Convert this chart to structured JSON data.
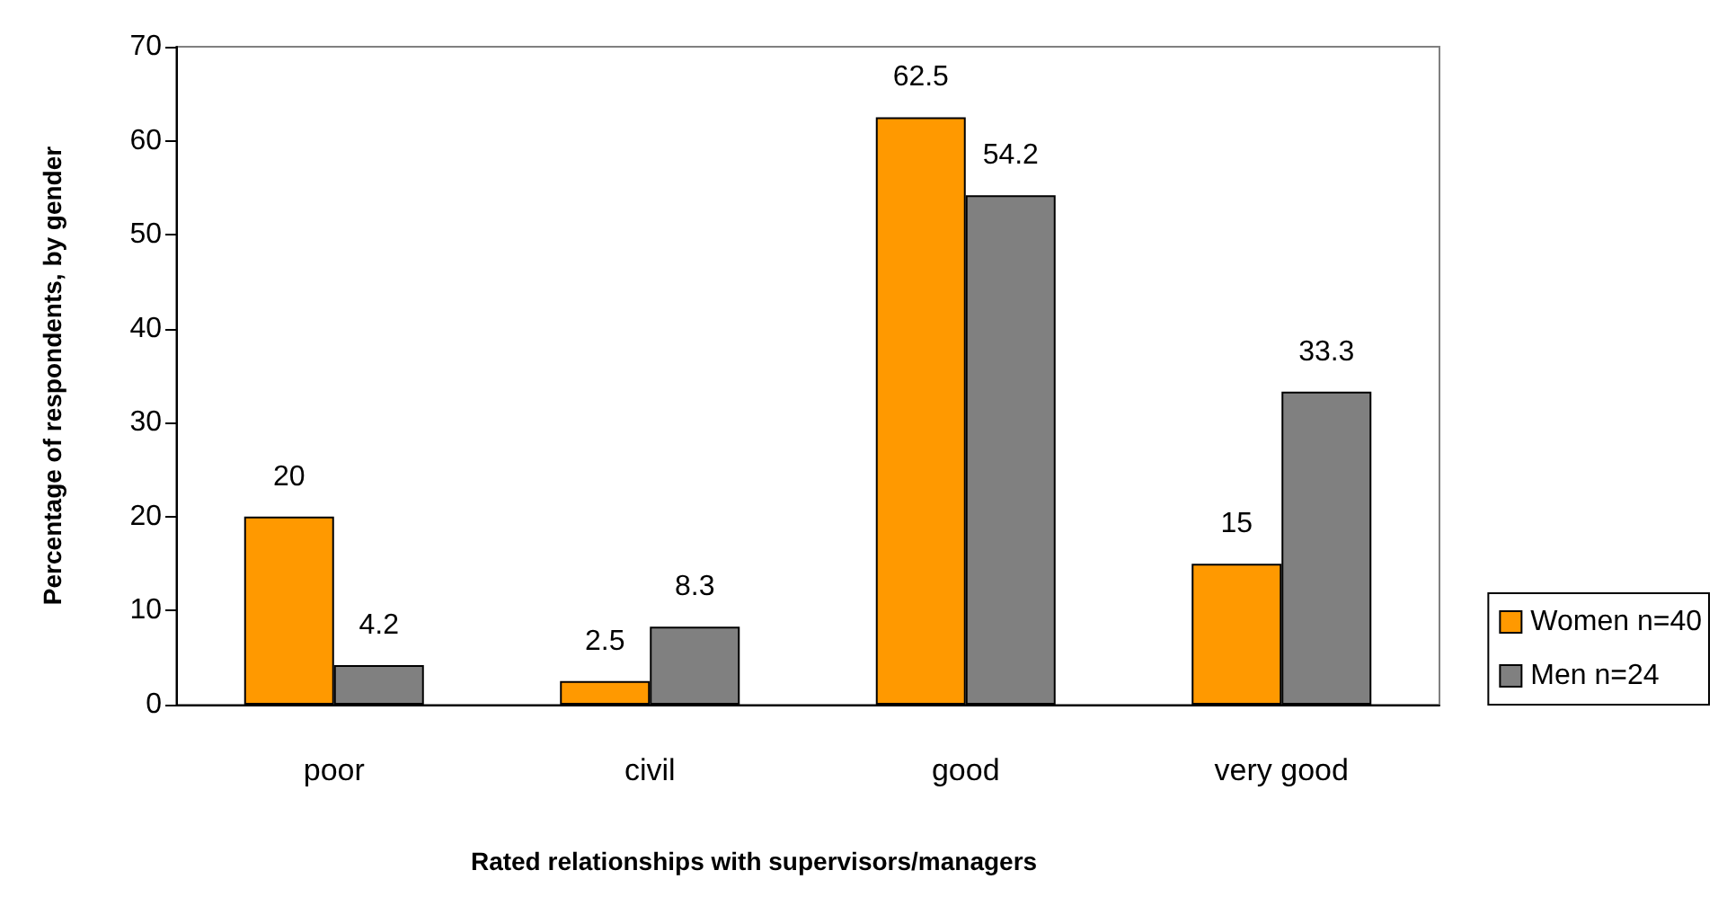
{
  "chart_data": {
    "type": "bar",
    "xlabel": "Rated relationships with supervisors/managers",
    "ylabel": "Percentage of respondents, by gender",
    "categories": [
      "poor",
      "civil",
      "good",
      "very good"
    ],
    "series": [
      {
        "name": "Women n=40",
        "color": "#ff9900",
        "values": [
          20,
          2.5,
          62.5,
          15
        ]
      },
      {
        "name": "Men n=24",
        "color": "#808080",
        "values": [
          4.2,
          8.3,
          54.2,
          33.3
        ]
      }
    ],
    "ylim": [
      0,
      70
    ],
    "yticks": [
      0,
      10,
      20,
      30,
      40,
      50,
      60,
      70
    ],
    "grid": false,
    "legend": "right",
    "data_labels": true
  }
}
